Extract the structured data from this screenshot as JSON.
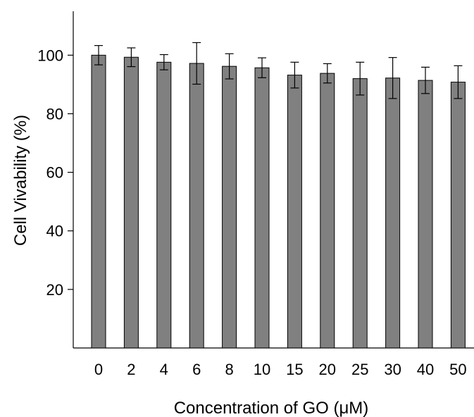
{
  "chart_data": {
    "type": "bar",
    "title": "",
    "xlabel": "Concentration of GO (μM)",
    "ylabel": "Cell Vivability (%)",
    "categories": [
      "0",
      "2",
      "4",
      "6",
      "8",
      "10",
      "15",
      "20",
      "25",
      "30",
      "40",
      "50"
    ],
    "values": [
      100,
      99.3,
      97.6,
      97.2,
      96.2,
      95.7,
      93.2,
      93.8,
      92.0,
      92.2,
      91.4,
      90.8
    ],
    "error": [
      3.3,
      3.2,
      2.6,
      7.1,
      4.3,
      3.4,
      4.4,
      3.3,
      5.6,
      7.0,
      4.5,
      5.6
    ],
    "yticks": [
      20,
      40,
      60,
      80,
      100
    ],
    "ylim": [
      0,
      115
    ],
    "bar_color": "#808080",
    "grid": false
  }
}
